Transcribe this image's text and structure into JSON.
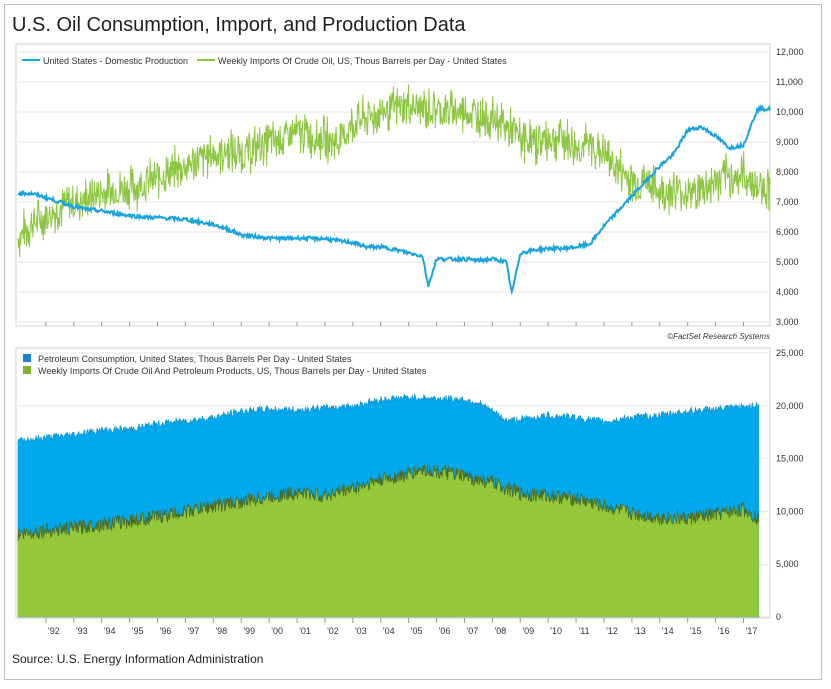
{
  "title": "U.S. Oil Consumption, Import, and Production Data",
  "source": "Source: U.S. Energy Information Administration",
  "credit": "©FactSet Research Systems",
  "colors": {
    "production": "#1aa3dc",
    "imports_top": "#8dc641",
    "consumption": "#02a8ec",
    "imports_bottom": "#93c83b",
    "imports_edge": "#4b6a24"
  },
  "x_ticks": [
    "'92",
    "'93",
    "'94",
    "'95",
    "'96",
    "'97",
    "'98",
    "'99",
    "'00",
    "'01",
    "'02",
    "'03",
    "'04",
    "'05",
    "'06",
    "'07",
    "'08",
    "'09",
    "'10",
    "'11",
    "'12",
    "'13",
    "'14",
    "'15",
    "'16",
    "'17"
  ],
  "chart_data": [
    {
      "type": "line",
      "legend_position": "top-left",
      "y_ticks": [
        "12,000",
        "11,000",
        "10,000",
        "9,000",
        "8,000",
        "7,000",
        "6,000",
        "5,000",
        "4,000",
        "3,000"
      ],
      "ylim": [
        3000,
        12000
      ],
      "series": [
        {
          "name": "United States - Domestic Production",
          "color": "#1aa3dc",
          "x": [
            1991.0,
            1991.5,
            1992.0,
            1992.5,
            1993.0,
            1993.5,
            1994.0,
            1994.5,
            1995.0,
            1995.5,
            1996.0,
            1996.5,
            1997.0,
            1997.5,
            1998.0,
            1998.5,
            1999.0,
            1999.5,
            2000.0,
            2000.5,
            2001.0,
            2001.5,
            2002.0,
            2002.5,
            2003.0,
            2003.5,
            2004.0,
            2004.5,
            2005.0,
            2005.5,
            2005.7,
            2006.0,
            2006.5,
            2007.0,
            2007.5,
            2008.0,
            2008.5,
            2008.7,
            2009.0,
            2009.5,
            2010.0,
            2010.5,
            2011.0,
            2011.5,
            2012.0,
            2012.5,
            2013.0,
            2013.5,
            2014.0,
            2014.5,
            2015.0,
            2015.5,
            2016.0,
            2016.5,
            2017.0,
            2017.5
          ],
          "values": [
            7300,
            7280,
            7150,
            7000,
            6850,
            6750,
            6700,
            6620,
            6550,
            6500,
            6480,
            6450,
            6420,
            6330,
            6250,
            6100,
            5900,
            5850,
            5800,
            5780,
            5800,
            5780,
            5780,
            5700,
            5650,
            5500,
            5500,
            5420,
            5300,
            5200,
            4200,
            5100,
            5100,
            5100,
            5050,
            5100,
            5000,
            3950,
            5300,
            5400,
            5450,
            5450,
            5500,
            5600,
            6200,
            6700,
            7200,
            7700,
            8200,
            8600,
            9400,
            9500,
            9200,
            8800,
            8900,
            10100
          ]
        },
        {
          "name": "Weekly Imports Of Crude Oil, US, Thous Barrels per Day - United States",
          "color": "#8dc641",
          "x": [
            1991.0,
            1991.5,
            1992.0,
            1992.5,
            1993.0,
            1993.5,
            1994.0,
            1994.5,
            1995.0,
            1995.5,
            1996.0,
            1996.5,
            1997.0,
            1997.5,
            1998.0,
            1998.5,
            1999.0,
            1999.5,
            2000.0,
            2000.5,
            2001.0,
            2001.5,
            2002.0,
            2002.5,
            2003.0,
            2003.5,
            2004.0,
            2004.5,
            2005.0,
            2005.5,
            2006.0,
            2006.5,
            2007.0,
            2007.5,
            2008.0,
            2008.5,
            2009.0,
            2009.5,
            2010.0,
            2010.5,
            2011.0,
            2011.5,
            2012.0,
            2012.5,
            2013.0,
            2013.5,
            2014.0,
            2014.5,
            2015.0,
            2015.5,
            2016.0,
            2016.5,
            2017.0,
            2017.5
          ],
          "values": [
            5800,
            6300,
            6500,
            6800,
            7000,
            7100,
            7300,
            7400,
            7500,
            7600,
            7800,
            8000,
            8200,
            8400,
            8600,
            8700,
            8600,
            8800,
            9000,
            9100,
            9300,
            9200,
            9100,
            9000,
            9600,
            9800,
            10000,
            10100,
            10200,
            10100,
            10100,
            10000,
            10000,
            9900,
            9800,
            9500,
            9100,
            9000,
            9100,
            9200,
            8800,
            8900,
            8600,
            8100,
            7700,
            7700,
            7300,
            7400,
            7300,
            7400,
            7700,
            7800,
            7900,
            7500
          ]
        }
      ]
    },
    {
      "type": "area",
      "legend_position": "top-left",
      "y_ticks": [
        "25,000",
        "20,000",
        "15,000",
        "10,000",
        "5,000",
        "0"
      ],
      "ylim": [
        0,
        25000
      ],
      "series": [
        {
          "name": "Petroleum Consumption, United States, Thous Barrels Per Day - United States",
          "color": "#02a8ec",
          "x": [
            1991.0,
            1992.0,
            1993.0,
            1994.0,
            1995.0,
            1996.0,
            1997.0,
            1998.0,
            1999.0,
            2000.0,
            2001.0,
            2002.0,
            2003.0,
            2004.0,
            2005.0,
            2006.0,
            2007.0,
            2007.5,
            2008.0,
            2008.5,
            2009.0,
            2010.0,
            2011.0,
            2012.0,
            2013.0,
            2014.0,
            2015.0,
            2016.0,
            2017.0,
            2017.5
          ],
          "values": [
            16700,
            17000,
            17300,
            17700,
            17800,
            18300,
            18600,
            18900,
            19500,
            19700,
            19600,
            19800,
            20000,
            20600,
            20800,
            20700,
            20600,
            20300,
            19500,
            18600,
            18700,
            19100,
            18900,
            18500,
            18900,
            19100,
            19500,
            19700,
            19900,
            20100
          ]
        },
        {
          "name": "Weekly Imports Of Crude Oil And Petroleum Products, US, Thous Barrels per Day - United States",
          "color": "#93c83b",
          "x": [
            1991.0,
            1992.0,
            1993.0,
            1994.0,
            1995.0,
            1996.0,
            1997.0,
            1998.0,
            1999.0,
            2000.0,
            2001.0,
            2002.0,
            2003.0,
            2004.0,
            2005.0,
            2005.5,
            2006.0,
            2007.0,
            2008.0,
            2009.0,
            2010.0,
            2011.0,
            2012.0,
            2013.0,
            2014.0,
            2015.0,
            2016.0,
            2017.0,
            2017.5
          ],
          "values": [
            7800,
            8200,
            8400,
            8800,
            9100,
            9500,
            10000,
            10500,
            10900,
            11400,
            11800,
            11500,
            12200,
            13000,
            13500,
            14000,
            13800,
            13300,
            12700,
            11700,
            11500,
            11200,
            10500,
            9800,
            9400,
            9300,
            9700,
            10200,
            9400
          ]
        }
      ]
    }
  ]
}
